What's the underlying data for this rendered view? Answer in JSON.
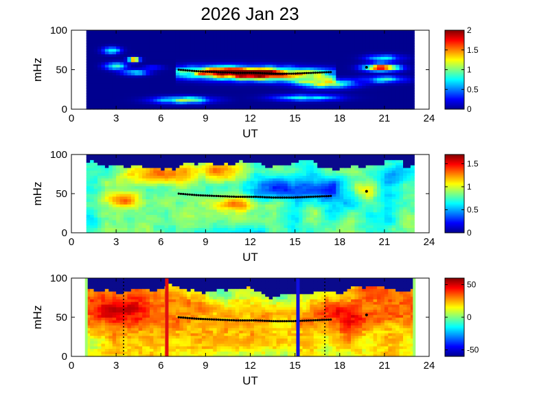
{
  "title": "2026 Jan 23",
  "colors": {
    "jet": [
      "#00008f",
      "#0000ff",
      "#0080ff",
      "#00ffff",
      "#80ff80",
      "#ffff00",
      "#ff8000",
      "#ff0000",
      "#800000"
    ],
    "background_navy": "#0a0a8c",
    "marker_color": "#000000",
    "red_line": "#e01010",
    "blue_line": "#1010e0",
    "green_edge": "#a0ff70"
  },
  "chart_data": [
    {
      "type": "heatmap",
      "panel": "top",
      "xlabel": "UT",
      "ylabel": "mHz",
      "xlim": [
        0,
        24
      ],
      "ylim": [
        0,
        100
      ],
      "xticks": [
        0,
        3,
        6,
        9,
        12,
        15,
        18,
        21,
        24
      ],
      "yticks": [
        0,
        50,
        100
      ],
      "data_x_range": [
        1,
        23
      ],
      "colorbar": {
        "range": [
          0,
          2
        ],
        "ticks": [
          0,
          0.5,
          1,
          1.5,
          2
        ],
        "tick_labels": [
          "0",
          "0.5",
          "1",
          "1.5",
          "2"
        ]
      },
      "marker_track": {
        "x_range": [
          7.2,
          17.4
        ],
        "freq_mhz": [
          50,
          48,
          47,
          46,
          46,
          45,
          45,
          46,
          47
        ]
      }
    },
    {
      "type": "heatmap",
      "panel": "middle",
      "xlabel": "UT",
      "ylabel": "mHz",
      "xlim": [
        0,
        24
      ],
      "ylim": [
        0,
        100
      ],
      "xticks": [
        0,
        3,
        6,
        9,
        12,
        15,
        18,
        21,
        24
      ],
      "yticks": [
        0,
        50,
        100
      ],
      "data_x_range": [
        1,
        23
      ],
      "colorbar": {
        "range": [
          0,
          1.7
        ],
        "ticks": [
          0,
          0.5,
          1,
          1.5
        ],
        "tick_labels": [
          "0",
          "0.5",
          "1",
          "1.5"
        ]
      },
      "marker_track": {
        "x_range": [
          7.2,
          17.4
        ],
        "freq_mhz": [
          50,
          48,
          47,
          46,
          46,
          45,
          45,
          46,
          47
        ]
      }
    },
    {
      "type": "heatmap",
      "panel": "bottom",
      "xlabel": "UT",
      "ylabel": "mHz",
      "xlim": [
        0,
        24
      ],
      "ylim": [
        0,
        100
      ],
      "xticks": [
        0,
        3,
        6,
        9,
        12,
        15,
        18,
        21,
        24
      ],
      "yticks": [
        0,
        50,
        100
      ],
      "data_x_range": [
        1,
        23
      ],
      "colorbar": {
        "range": [
          -60,
          60
        ],
        "ticks": [
          -50,
          0,
          50
        ],
        "tick_labels": [
          "-50",
          "0",
          "50"
        ]
      },
      "marker_track": {
        "x_range": [
          7.2,
          17.4
        ],
        "freq_mhz": [
          50,
          48,
          47,
          46,
          46,
          45,
          45,
          46,
          47
        ]
      },
      "vertical_lines": [
        {
          "x": 6.4,
          "style": "solid",
          "color": "red"
        },
        {
          "x": 15.2,
          "style": "solid",
          "color": "blue"
        },
        {
          "x": 3.5,
          "style": "dotted",
          "color": "black"
        },
        {
          "x": 17.0,
          "style": "dotted",
          "color": "black"
        }
      ]
    }
  ]
}
